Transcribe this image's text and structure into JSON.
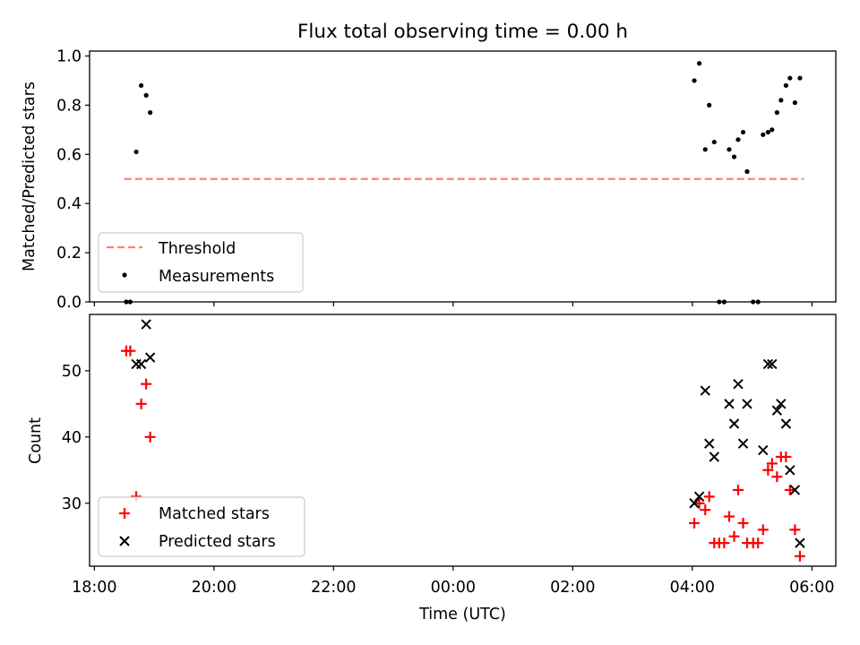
{
  "title": "Flux total observing time = 0.00 h",
  "chart_data": [
    {
      "type": "scatter",
      "ylabel": "Matched/Predicted stars",
      "ylim": [
        0,
        1.02
      ],
      "yticks": [
        "0.0",
        "0.2",
        "0.4",
        "0.6",
        "0.8",
        "1.0"
      ],
      "ytick_values": [
        0,
        0.2,
        0.4,
        0.6,
        0.8,
        1.0
      ],
      "legend_position": "lower-left",
      "threshold": {
        "name": "Threshold",
        "value": 0.5,
        "x_start": "18:30",
        "x_end": "05:52",
        "color": "#ff7f7f"
      },
      "series": [
        {
          "name": "Measurements",
          "color": "#000000",
          "points": [
            [
              "18:32",
              0.0
            ],
            [
              "18:36",
              0.0
            ],
            [
              "18:42",
              0.61
            ],
            [
              "18:47",
              0.88
            ],
            [
              "18:52",
              0.84
            ],
            [
              "18:56",
              0.77
            ],
            [
              "04:02",
              0.9
            ],
            [
              "04:07",
              0.97
            ],
            [
              "04:13",
              0.62
            ],
            [
              "04:17",
              0.8
            ],
            [
              "04:22",
              0.65
            ],
            [
              "04:27",
              0.0
            ],
            [
              "04:32",
              0.0
            ],
            [
              "04:37",
              0.62
            ],
            [
              "04:42",
              0.59
            ],
            [
              "04:46",
              0.66
            ],
            [
              "04:51",
              0.69
            ],
            [
              "04:55",
              0.53
            ],
            [
              "05:01",
              0.0
            ],
            [
              "05:06",
              0.0
            ],
            [
              "05:11",
              0.68
            ],
            [
              "05:16",
              0.69
            ],
            [
              "05:20",
              0.7
            ],
            [
              "05:25",
              0.77
            ],
            [
              "05:29",
              0.82
            ],
            [
              "05:34",
              0.88
            ],
            [
              "05:38",
              0.91
            ],
            [
              "05:43",
              0.81
            ],
            [
              "05:48",
              0.91
            ]
          ]
        }
      ]
    },
    {
      "type": "scatter",
      "xlabel": "Time (UTC)",
      "ylabel": "Count",
      "ylim": [
        20.5,
        58.5
      ],
      "yticks": [
        "30",
        "40",
        "50"
      ],
      "ytick_values": [
        30,
        40,
        50
      ],
      "xticks": [
        "18:00",
        "20:00",
        "22:00",
        "00:00",
        "02:00",
        "04:00",
        "06:00"
      ],
      "legend_position": "lower-left",
      "series": [
        {
          "name": "Matched stars",
          "marker": "plus",
          "color": "#ff0000",
          "points": [
            [
              "18:32",
              53
            ],
            [
              "18:36",
              53
            ],
            [
              "18:42",
              31
            ],
            [
              "18:47",
              45
            ],
            [
              "18:52",
              48
            ],
            [
              "18:56",
              40
            ],
            [
              "04:02",
              27
            ],
            [
              "04:07",
              30
            ],
            [
              "04:13",
              29
            ],
            [
              "04:17",
              31
            ],
            [
              "04:22",
              24
            ],
            [
              "04:27",
              24
            ],
            [
              "04:32",
              24
            ],
            [
              "04:37",
              28
            ],
            [
              "04:42",
              25
            ],
            [
              "04:46",
              32
            ],
            [
              "04:51",
              27
            ],
            [
              "04:55",
              24
            ],
            [
              "05:01",
              24
            ],
            [
              "05:06",
              24
            ],
            [
              "05:11",
              26
            ],
            [
              "05:16",
              35
            ],
            [
              "05:20",
              36
            ],
            [
              "05:25",
              34
            ],
            [
              "05:29",
              37
            ],
            [
              "05:34",
              37
            ],
            [
              "05:38",
              32
            ],
            [
              "05:43",
              26
            ],
            [
              "05:48",
              22
            ]
          ]
        },
        {
          "name": "Predicted stars",
          "marker": "x",
          "color": "#000000",
          "points": [
            [
              "18:42",
              51
            ],
            [
              "18:47",
              51
            ],
            [
              "18:52",
              57
            ],
            [
              "18:56",
              52
            ],
            [
              "04:02",
              30
            ],
            [
              "04:07",
              31
            ],
            [
              "04:13",
              47
            ],
            [
              "04:17",
              39
            ],
            [
              "04:22",
              37
            ],
            [
              "04:37",
              45
            ],
            [
              "04:42",
              42
            ],
            [
              "04:46",
              48
            ],
            [
              "04:51",
              39
            ],
            [
              "04:55",
              45
            ],
            [
              "05:11",
              38
            ],
            [
              "05:16",
              51
            ],
            [
              "05:20",
              51
            ],
            [
              "05:25",
              44
            ],
            [
              "05:29",
              45
            ],
            [
              "05:34",
              42
            ],
            [
              "05:38",
              35
            ],
            [
              "05:43",
              32
            ],
            [
              "05:48",
              24
            ]
          ]
        }
      ]
    }
  ]
}
